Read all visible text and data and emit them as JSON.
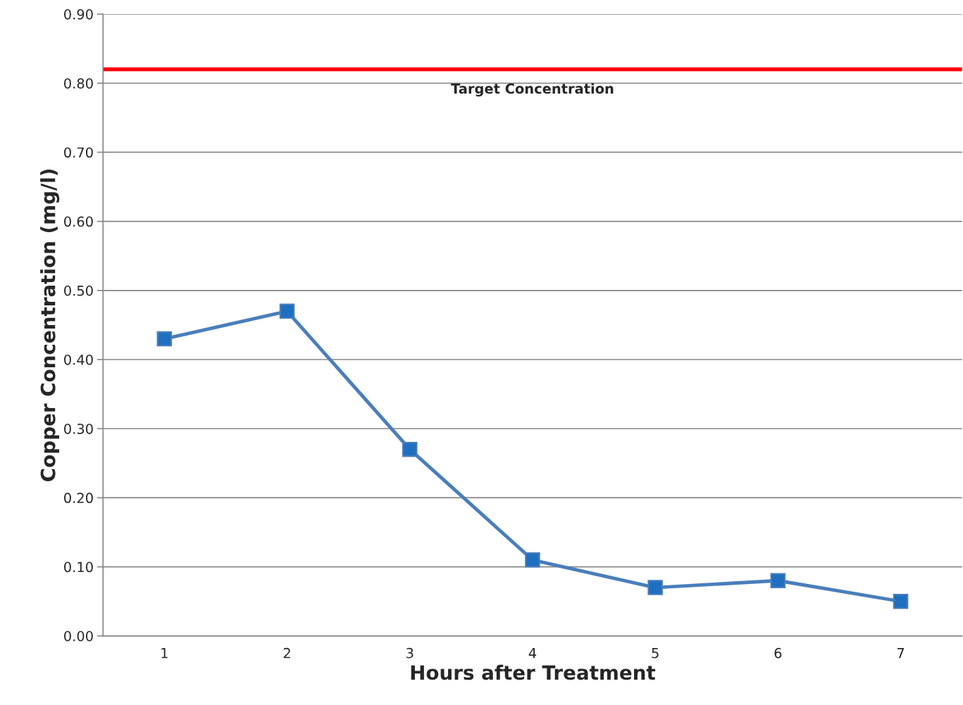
{
  "chart_data": {
    "type": "line",
    "xlabel": "Hours after Treatment",
    "ylabel": "Copper Concentration (mg/l)",
    "categories": [
      "1",
      "2",
      "3",
      "4",
      "5",
      "6",
      "7"
    ],
    "series": [
      {
        "color": "#4a7ebb",
        "values": [
          0.43,
          0.47,
          0.27,
          0.11,
          0.07,
          0.08,
          0.05
        ]
      }
    ],
    "ylim": [
      0,
      0.9
    ],
    "yticks": [
      {
        "value": 0,
        "label": "0.00"
      },
      {
        "value": 0.1,
        "label": "0.10"
      },
      {
        "value": 0.2,
        "label": "0.20"
      },
      {
        "value": 0.3,
        "label": "0.30"
      },
      {
        "value": 0.4,
        "label": "0.40"
      },
      {
        "value": 0.5,
        "label": "0.50"
      },
      {
        "value": 0.6,
        "label": "0.60"
      },
      {
        "value": 0.7,
        "label": "0.70"
      },
      {
        "value": 0.8,
        "label": "0.80"
      },
      {
        "value": 0.9,
        "label": "0.90"
      }
    ],
    "ref_lines": [
      {
        "axis": "y",
        "value": 0.82,
        "label": "Target Concentration",
        "color": "#ff0000"
      }
    ],
    "grid": "y",
    "marker": "square",
    "line_style": "solid"
  }
}
